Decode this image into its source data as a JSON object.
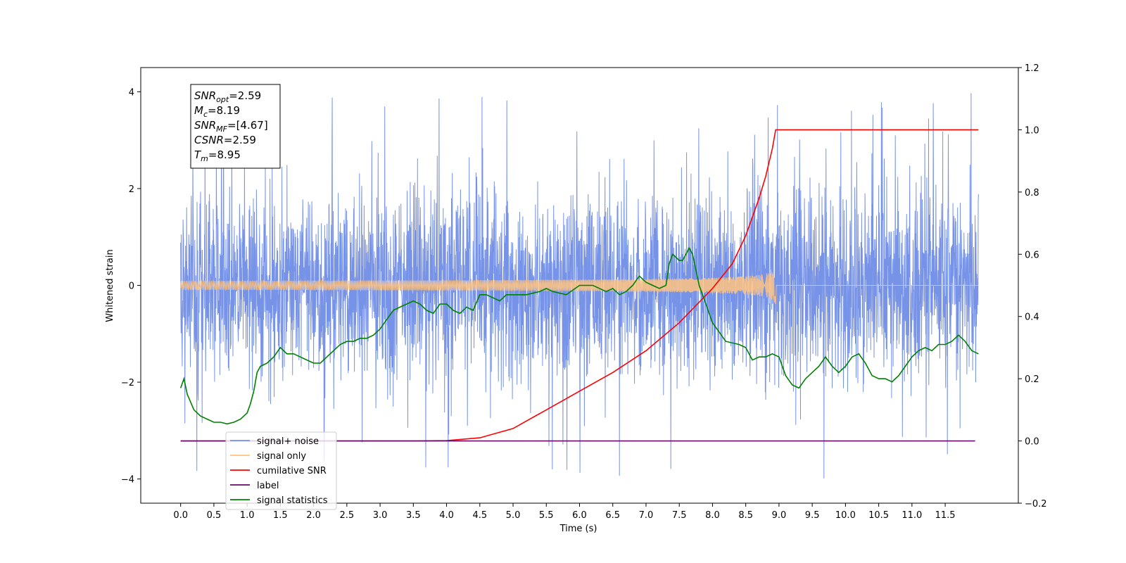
{
  "chart_data": {
    "type": "line",
    "title": "",
    "xlabel": "Time (s)",
    "ylabel": "Whitened strain",
    "xlim": [
      -0.6,
      12.6
    ],
    "ylim": [
      -4.5,
      4.5
    ],
    "y2lim": [
      -0.2,
      1.2
    ],
    "x_ticks": [
      0.0,
      0.5,
      1.0,
      1.5,
      2.0,
      2.5,
      3.0,
      3.5,
      4.0,
      4.5,
      5.0,
      5.5,
      6.0,
      6.5,
      7.0,
      7.5,
      8.0,
      8.5,
      9.0,
      9.5,
      10.0,
      10.5,
      11.0,
      11.5
    ],
    "x_tick_labels": [
      "0.0",
      "0.5",
      "1.0",
      "1.5",
      "2.0",
      "2.5",
      "3.0",
      "3.5",
      "4.0",
      "4.5",
      "5.0",
      "5.5",
      "6.0",
      "6.5",
      "7.0",
      "7.5",
      "8.0",
      "8.5",
      "9.0",
      "9.5",
      "10.0",
      "10.5",
      "11.0",
      "11.5"
    ],
    "y_ticks": [
      -4,
      -2,
      0,
      2,
      4
    ],
    "y_tick_labels": [
      "−4",
      "−2",
      "0",
      "2",
      "4"
    ],
    "y2_ticks": [
      -0.2,
      0.0,
      0.2,
      0.4,
      0.6,
      0.8,
      1.0,
      1.2
    ],
    "y2_tick_labels": [
      "−0.2",
      "0.0",
      "0.2",
      "0.4",
      "0.6",
      "0.8",
      "1.0",
      "1.2"
    ],
    "grid": false,
    "legend_position": "lower-left",
    "annotation": {
      "lines": [
        {
          "base": "SNR",
          "sub": "opt",
          "value": "=2.59"
        },
        {
          "base": "M",
          "sub": "c",
          "value": "=8.19"
        },
        {
          "base": "SNR",
          "sub": "MF",
          "value": "=[4.67]"
        },
        {
          "base": "CSNR",
          "sub": "",
          "value": "=2.59"
        },
        {
          "base": "T",
          "sub": "m",
          "value": "=8.95"
        }
      ]
    },
    "series": [
      {
        "name": "signal+ noise",
        "axis": "left",
        "color": "#7793e8",
        "kind": "noise",
        "x_range": [
          0.0,
          12.0
        ],
        "std": 0.95,
        "peak_range": [
          -4.05,
          4.05
        ]
      },
      {
        "name": "signal only",
        "axis": "left",
        "color": "#ffc37f",
        "kind": "chirp",
        "x_range": [
          0.0,
          8.95
        ],
        "amplitude_at_merger": 0.42
      },
      {
        "name": "cumilative SNR",
        "axis": "right",
        "color": "#ff0000",
        "x": [
          0.0,
          3.5,
          4.0,
          4.5,
          5.0,
          5.5,
          6.0,
          6.5,
          7.0,
          7.5,
          8.0,
          8.3,
          8.5,
          8.7,
          8.8,
          8.9,
          8.95,
          9.0,
          10.0,
          11.0,
          12.0
        ],
        "values": [
          0.0,
          0.0,
          0.001,
          0.01,
          0.04,
          0.1,
          0.16,
          0.22,
          0.29,
          0.38,
          0.49,
          0.57,
          0.66,
          0.78,
          0.85,
          0.94,
          1.0,
          1.0,
          1.0,
          1.0,
          1.0
        ]
      },
      {
        "name": "label",
        "axis": "right",
        "color": "#6a0a6a",
        "x": [
          0.0,
          11.95
        ],
        "values": [
          0.0,
          0.0
        ]
      },
      {
        "name": "signal statistics",
        "axis": "right",
        "color": "#008000",
        "x": [
          0.0,
          0.05,
          0.1,
          0.2,
          0.3,
          0.4,
          0.5,
          0.6,
          0.7,
          0.8,
          0.9,
          1.0,
          1.05,
          1.1,
          1.15,
          1.2,
          1.3,
          1.4,
          1.5,
          1.6,
          1.7,
          1.8,
          1.9,
          2.0,
          2.1,
          2.2,
          2.3,
          2.4,
          2.5,
          2.6,
          2.7,
          2.8,
          2.9,
          3.0,
          3.1,
          3.2,
          3.3,
          3.4,
          3.5,
          3.6,
          3.7,
          3.8,
          3.9,
          4.0,
          4.1,
          4.2,
          4.3,
          4.4,
          4.5,
          4.6,
          4.7,
          4.8,
          4.9,
          5.0,
          5.2,
          5.4,
          5.5,
          5.6,
          5.8,
          6.0,
          6.2,
          6.4,
          6.5,
          6.6,
          6.7,
          6.8,
          6.9,
          7.0,
          7.1,
          7.2,
          7.3,
          7.35,
          7.4,
          7.5,
          7.55,
          7.6,
          7.65,
          7.7,
          7.8,
          7.9,
          8.0,
          8.1,
          8.2,
          8.4,
          8.5,
          8.6,
          8.7,
          8.8,
          8.9,
          9.0,
          9.1,
          9.2,
          9.3,
          9.4,
          9.5,
          9.6,
          9.7,
          9.8,
          9.9,
          10.0,
          10.1,
          10.2,
          10.3,
          10.4,
          10.5,
          10.6,
          10.7,
          10.8,
          10.9,
          11.0,
          11.1,
          11.2,
          11.3,
          11.4,
          11.5,
          11.6,
          11.7,
          11.8,
          11.9,
          12.0
        ],
        "values": [
          0.17,
          0.2,
          0.15,
          0.1,
          0.08,
          0.07,
          0.06,
          0.06,
          0.055,
          0.06,
          0.07,
          0.09,
          0.12,
          0.16,
          0.22,
          0.24,
          0.25,
          0.27,
          0.3,
          0.28,
          0.28,
          0.27,
          0.26,
          0.25,
          0.25,
          0.27,
          0.29,
          0.31,
          0.32,
          0.32,
          0.33,
          0.33,
          0.34,
          0.36,
          0.39,
          0.42,
          0.43,
          0.44,
          0.45,
          0.44,
          0.42,
          0.41,
          0.44,
          0.44,
          0.42,
          0.41,
          0.43,
          0.42,
          0.47,
          0.47,
          0.46,
          0.45,
          0.47,
          0.47,
          0.47,
          0.48,
          0.49,
          0.48,
          0.47,
          0.5,
          0.5,
          0.48,
          0.49,
          0.47,
          0.48,
          0.5,
          0.53,
          0.51,
          0.5,
          0.49,
          0.5,
          0.57,
          0.6,
          0.58,
          0.58,
          0.6,
          0.62,
          0.6,
          0.5,
          0.44,
          0.38,
          0.35,
          0.32,
          0.31,
          0.3,
          0.26,
          0.27,
          0.27,
          0.28,
          0.27,
          0.21,
          0.18,
          0.17,
          0.2,
          0.22,
          0.24,
          0.27,
          0.24,
          0.22,
          0.24,
          0.27,
          0.28,
          0.25,
          0.21,
          0.2,
          0.2,
          0.19,
          0.21,
          0.24,
          0.27,
          0.29,
          0.3,
          0.29,
          0.31,
          0.31,
          0.32,
          0.34,
          0.32,
          0.29,
          0.28
        ]
      }
    ]
  }
}
